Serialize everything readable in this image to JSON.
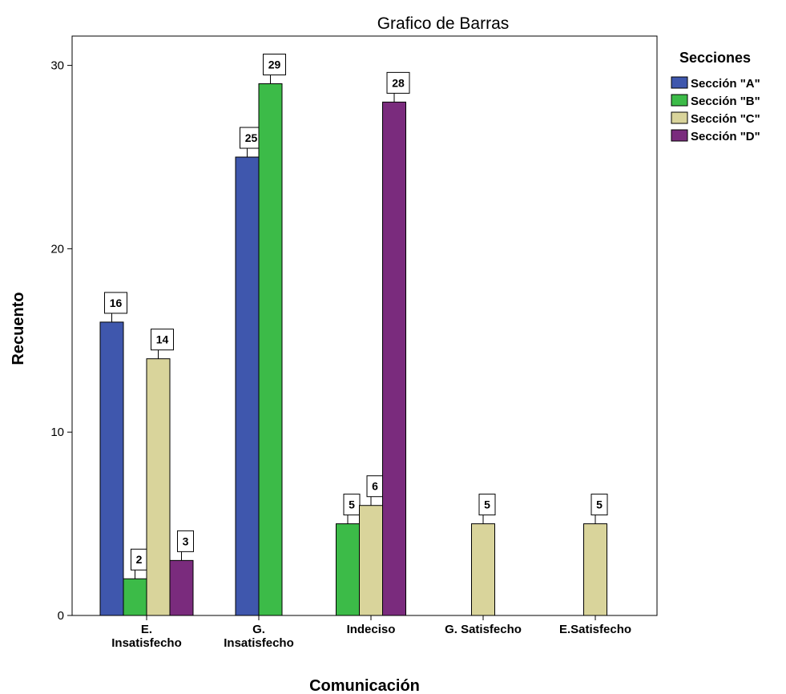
{
  "chart_data": {
    "type": "bar",
    "title": "Grafico de Barras",
    "x_label": "Comunicación",
    "y_label": "Recuento",
    "legend_title": "Secciones",
    "categories": [
      "E.\nInsatisfecho",
      "G.\nInsatisfecho",
      "Indeciso",
      "G. Satisfecho",
      "E.Satisfecho"
    ],
    "series": [
      {
        "name": "Sección \"A\"",
        "color": "#3f57ad",
        "values": [
          16,
          25,
          null,
          null,
          null
        ]
      },
      {
        "name": "Sección \"B\"",
        "color": "#3cbb48",
        "values": [
          2,
          29,
          5,
          null,
          null
        ]
      },
      {
        "name": "Sección \"C\"",
        "color": "#d9d49b",
        "values": [
          14,
          null,
          6,
          5,
          5
        ]
      },
      {
        "name": "Sección \"D\"",
        "color": "#7a2b7d",
        "values": [
          3,
          null,
          28,
          null,
          null
        ]
      }
    ],
    "ylim": [
      0,
      31.6
    ],
    "yticks": [
      0,
      10,
      20,
      30
    ],
    "legend": "right"
  }
}
